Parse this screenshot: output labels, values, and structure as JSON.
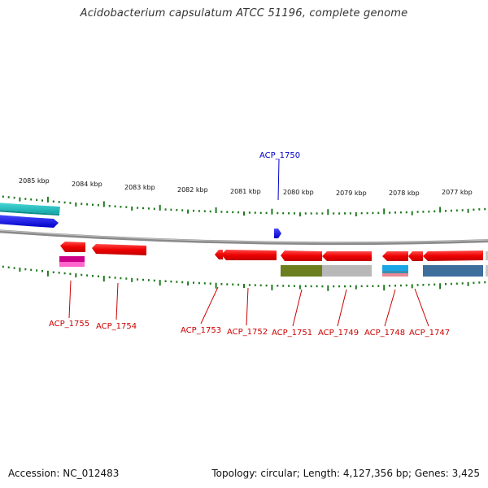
{
  "title": "Acidobacterium capsulatum ATCC 51196, complete genome",
  "footer": {
    "accession": "Accession: NC_012483",
    "stats": "Topology: circular; Length: 4,127,356 bp; Genes: 3,425"
  },
  "colors": {
    "backbone": "#8a8a8a",
    "tick": "#1e7a1e",
    "gene_label_default": "#cc0000",
    "gene_label_highlight": "#0000cc"
  },
  "ticks": [
    {
      "label": "2085 kbp"
    },
    {
      "label": "2084 kbp"
    },
    {
      "label": "2083 kbp"
    },
    {
      "label": "2082 kbp"
    },
    {
      "label": "2081 kbp"
    },
    {
      "label": "2080 kbp"
    },
    {
      "label": "2079 kbp"
    },
    {
      "label": "2078 kbp"
    },
    {
      "label": "2077 kbp"
    }
  ],
  "gene_labels": [
    {
      "text": "ACP_1750",
      "color": "#0000cc"
    },
    {
      "text": "ACP_1755",
      "color": "#cc0000"
    },
    {
      "text": "ACP_1754",
      "color": "#cc0000"
    },
    {
      "text": "ACP_1753",
      "color": "#cc0000"
    },
    {
      "text": "ACP_1752",
      "color": "#cc0000"
    },
    {
      "text": "ACP_1751",
      "color": "#cc0000"
    },
    {
      "text": "ACP_1749",
      "color": "#cc0000"
    },
    {
      "text": "ACP_1748",
      "color": "#cc0000"
    },
    {
      "text": "ACP_1747",
      "color": "#cc0000"
    }
  ]
}
